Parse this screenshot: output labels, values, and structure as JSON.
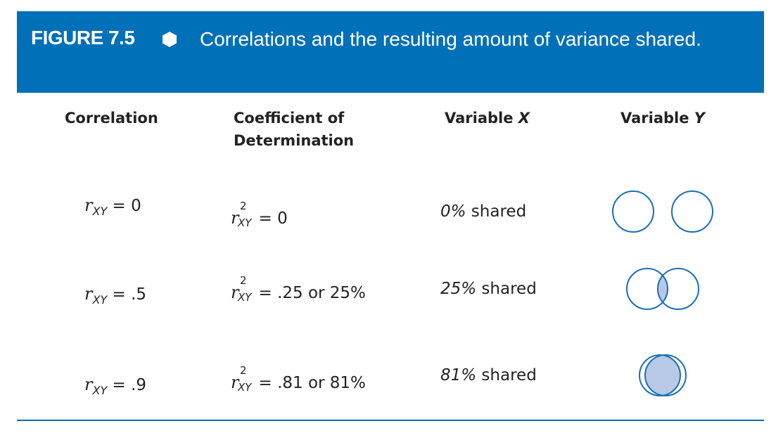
{
  "figure": {
    "label": "FIGURE 7.5",
    "caption": "Correlations and the resulting amount of variance shared."
  },
  "headers": {
    "correlation": "Correlation",
    "coefficient": "Coefficient of Determination",
    "variable_x_prefix": "Variable ",
    "variable_x_letter": "X",
    "variable_y_prefix": "Variable ",
    "variable_y_letter": "Y"
  },
  "rows": [
    {
      "r_value": "= 0",
      "r2_value": "= 0",
      "pct": "0%",
      "shared": " shared",
      "overlap": 0
    },
    {
      "r_value": "= .5",
      "r2_value": "= .25 or 25%",
      "pct": "25%",
      "shared": " shared",
      "overlap": 0.25
    },
    {
      "r_value": "= .9",
      "r2_value": "= .81 or 81%",
      "pct": "81%",
      "shared": " shared",
      "overlap": 0.81
    }
  ],
  "symbols": {
    "r": "r",
    "xy": "XY",
    "sq": "2"
  },
  "colors": {
    "accent": "#0070b8",
    "shared_fill": "#b7c9e6",
    "circle_stroke": "#1a6fb5"
  }
}
